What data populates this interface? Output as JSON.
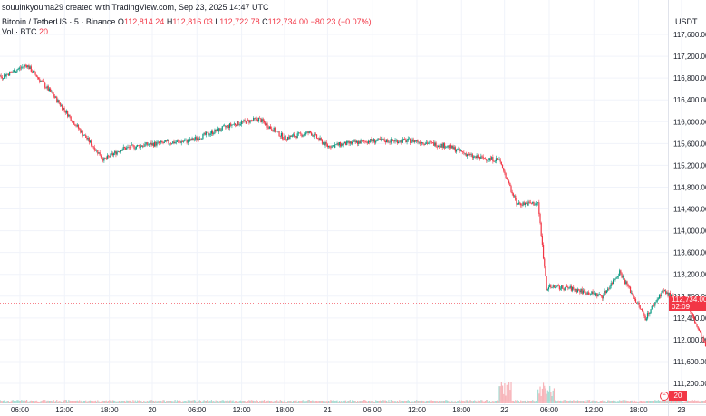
{
  "credit": "souuinkyouma29 created with TradingView.com, Sep 23, 2025 14:47 UTC",
  "legend": {
    "symbol": "Bitcoin / TetherUS · 5 · Binance",
    "o_label": "O",
    "o_value": "112,814.24",
    "h_label": "H",
    "h_value": "112,816.03",
    "l_label": "L",
    "l_value": "112,722.78",
    "c_label": "C",
    "c_value": "112,734.00",
    "change": "−80.23 (−0.07%)"
  },
  "volume_legend": {
    "label": "Vol · BTC",
    "value": "20"
  },
  "price_axis_unit": "USDT",
  "last_price": {
    "value": "112,734.00",
    "countdown": "02:09"
  },
  "volume_badge": "20",
  "colors": {
    "up": "#089981",
    "down": "#f23645",
    "grid": "#f0f3fa",
    "text": "#131722",
    "vol_up": "#a7dcd3",
    "vol_down": "#f7b5ba"
  },
  "chart_data": {
    "type": "candlestick",
    "y_ticks": [
      117600,
      117200,
      116800,
      116400,
      116000,
      115600,
      115200,
      114800,
      114400,
      114000,
      113600,
      113200,
      112800,
      112400,
      112000,
      111600,
      111200
    ],
    "y_tick_labels": [
      "117,600.00",
      "117,200.00",
      "116,800.00",
      "116,400.00",
      "116,000.00",
      "115,600.00",
      "115,200.00",
      "114,800.00",
      "114,400.00",
      "114,000.00",
      "113,600.00",
      "113,200.00",
      "112,800.00",
      "112,400.00",
      "112,000.00",
      "111,600.00",
      "111,200.00"
    ],
    "ylim": [
      111200,
      117600
    ],
    "x_ticks": [
      {
        "label": "06:00",
        "i": 0.52
      },
      {
        "label": "12:00",
        "i": 1.04
      },
      {
        "label": "18:00",
        "i": 1.56
      },
      {
        "label": "20",
        "i": 2.06
      },
      {
        "label": "06:00",
        "i": 2.58
      },
      {
        "label": "12:00",
        "i": 3.1
      },
      {
        "label": "18:00",
        "i": 3.6
      },
      {
        "label": "21",
        "i": 4.1
      },
      {
        "label": "06:00",
        "i": 4.62
      },
      {
        "label": "12:00",
        "i": 5.14
      },
      {
        "label": "18:00",
        "i": 5.66
      },
      {
        "label": "22",
        "i": 6.16
      },
      {
        "label": "06:00",
        "i": 6.68
      },
      {
        "label": "12:00",
        "i": 7.2
      },
      {
        "label": "18:00",
        "i": 7.72
      },
      {
        "label": "23",
        "i": 8.22
      },
      {
        "label": "06:00",
        "i": 8.74
      },
      {
        "label": "12:00",
        "i": 9.26
      }
    ],
    "price_path": [
      [
        0,
        117230
      ],
      [
        0.3,
        116820
      ],
      [
        0.6,
        117040
      ],
      [
        0.9,
        116500
      ],
      [
        1.2,
        115880
      ],
      [
        1.5,
        115300
      ],
      [
        1.7,
        115500
      ],
      [
        2.0,
        115580
      ],
      [
        2.5,
        115650
      ],
      [
        3.0,
        115950
      ],
      [
        3.3,
        116050
      ],
      [
        3.6,
        115700
      ],
      [
        3.9,
        115800
      ],
      [
        4.1,
        115550
      ],
      [
        4.6,
        115650
      ],
      [
        5.1,
        115650
      ],
      [
        5.5,
        115550
      ],
      [
        5.8,
        115350
      ],
      [
        6.1,
        115300
      ],
      [
        6.3,
        114500
      ],
      [
        6.55,
        114500
      ],
      [
        6.65,
        112950
      ],
      [
        6.9,
        112950
      ],
      [
        7.3,
        112800
      ],
      [
        7.5,
        113250
      ],
      [
        7.8,
        112400
      ],
      [
        8.0,
        112900
      ],
      [
        8.3,
        112600
      ],
      [
        8.55,
        111700
      ],
      [
        8.75,
        112700
      ],
      [
        8.95,
        113050
      ],
      [
        9.2,
        112900
      ],
      [
        9.55,
        112734
      ]
    ],
    "volume_spike_regions": [
      [
        6.1,
        6.25
      ],
      [
        6.55,
        6.75
      ],
      [
        9.45,
        9.55
      ]
    ]
  }
}
